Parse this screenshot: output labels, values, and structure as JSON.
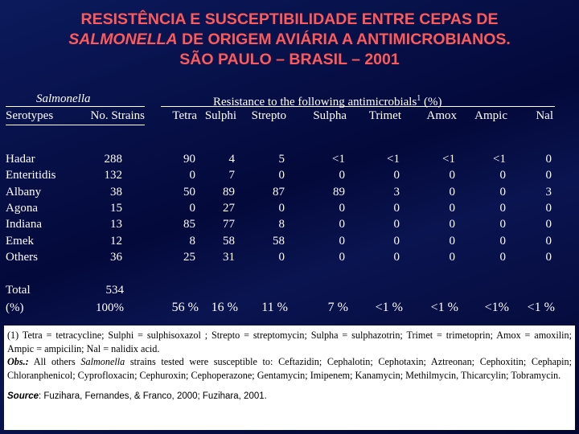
{
  "title": {
    "line1": "RESISTÊNCIA E SUSCEPTIBILIDADE ENTRE CEPAS DE",
    "line2_italic": "SALMONELLA",
    "line2_rest": " DE ORIGEM AVIÁRIA A ANTIMICROBIANOS.",
    "line3": "SÃO PAULO – BRASIL – 2001"
  },
  "table": {
    "group_headers": {
      "left": "Salmonella",
      "right": "Resistance to the following antimicrobials",
      "right_sup": "1",
      "right_unit": " (%)"
    },
    "columns": [
      "Serotypes",
      "No. Strains",
      "Tetra",
      "Sulphi",
      "Strepto",
      "Sulpha",
      "Trimet",
      "Amox",
      "Ampic",
      "Nal"
    ],
    "rows": [
      [
        "Hadar",
        "288",
        "90",
        "4",
        "5",
        "<1",
        "<1",
        "<1",
        "<1",
        "0"
      ],
      [
        "Enteritidis",
        "132",
        "0",
        "7",
        "0",
        "0",
        "0",
        "0",
        "0",
        "0"
      ],
      [
        "Albany",
        "38",
        "50",
        "89",
        "87",
        "89",
        "3",
        "0",
        "0",
        "3"
      ],
      [
        "Agona",
        "15",
        "0",
        "27",
        "0",
        "0",
        "0",
        "0",
        "0",
        "0"
      ],
      [
        "Indiana",
        "13",
        "85",
        "77",
        "8",
        "0",
        "0",
        "0",
        "0",
        "0"
      ],
      [
        "Emek",
        "12",
        "8",
        "58",
        "58",
        "0",
        "0",
        "0",
        "0",
        "0"
      ],
      [
        "Others",
        "36",
        "25",
        "31",
        "0",
        "0",
        "0",
        "0",
        "0",
        "0"
      ]
    ],
    "total": {
      "label": [
        "Total",
        "(%)"
      ],
      "strains": [
        "534",
        "100%"
      ],
      "values": [
        "56 %",
        "16 %",
        "11 %",
        "7 %",
        "<1 %",
        "<1 %",
        "<1%",
        "<1 %"
      ]
    }
  },
  "notes": {
    "abbreviations": "(1) Tetra = tetracycline; Sulphi = sulphisoxazol ; Strepto = streptomycin; Sulpha = sulphazotrin; Trimet = trimetoprin; Amox = amoxilin; Ampic = ampicilin; Nal = nalidix acid.",
    "obs_label": "Obs.:",
    "obs_text1": " All others ",
    "obs_italic": "Salmonella",
    "obs_text2": " strains tested were susceptible to: Ceftazidin; Cephalotin; Cephotaxin; Aztreonan; Cephoxitin; Cephapin; Chloranphenicol; Cyprofloxacin; Cephuroxin; Cephoperazone; Gentamycin; Imipenem; Kanamycin; Methilmycin, Thicarcylin; Tobramycin.",
    "source_label": "Source",
    "source_text": ": Fuzihara, Fernandes, & Franco, 2000; Fuzihara, 2001."
  }
}
